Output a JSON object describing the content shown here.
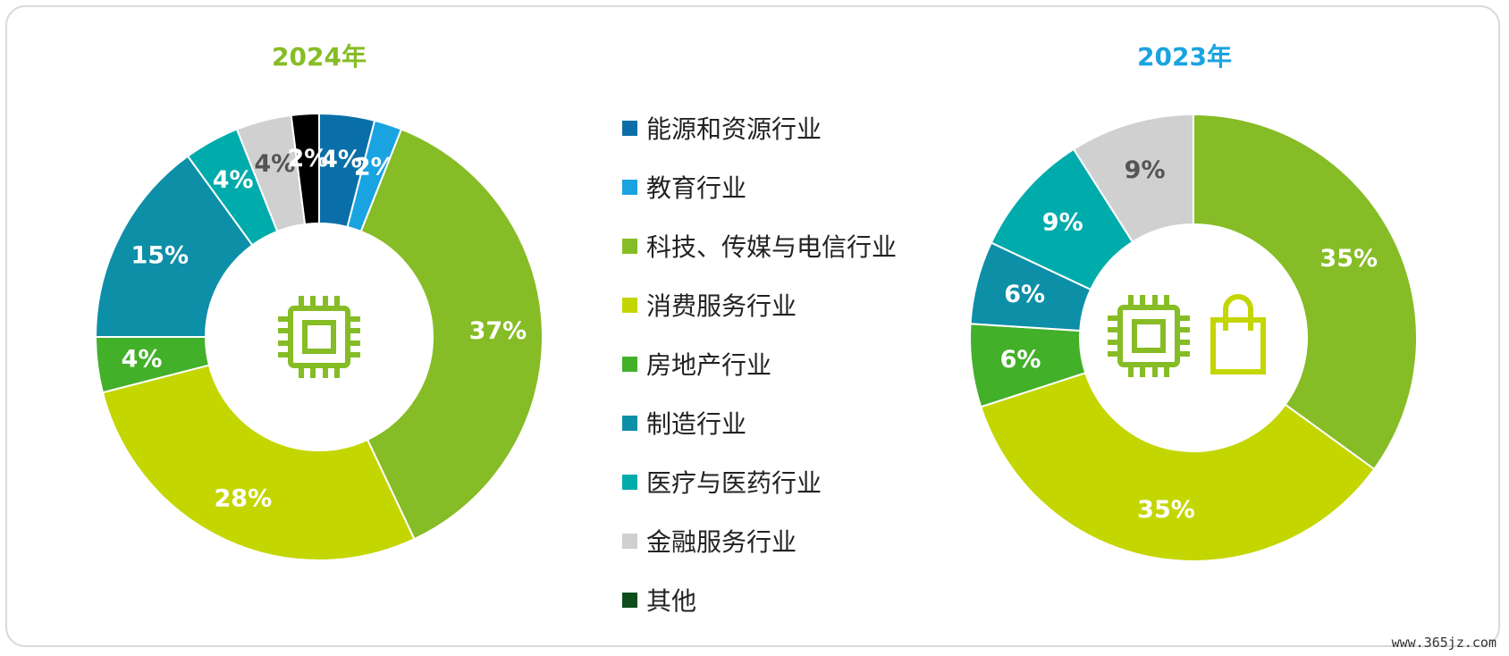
{
  "colors": {
    "energy": "#0a6fa8",
    "education": "#1aa3e1",
    "tmt": "#86bc25",
    "consumer": "#c4d600",
    "real_estate": "#43b02a",
    "manufacturing": "#0d8fa8",
    "health": "#00abab",
    "financial": "#d0d0d0",
    "other": "#000000",
    "title_2024": "#86bc25",
    "title_2023": "#1aa3e1"
  },
  "legend": [
    {
      "label": "能源和资源行业",
      "color": "#0a6fa8"
    },
    {
      "label": "教育行业",
      "color": "#1aa3e1"
    },
    {
      "label": "科技、传媒与电信行业",
      "color": "#86bc25"
    },
    {
      "label": "消费服务行业",
      "color": "#c4d600"
    },
    {
      "label": "房地产行业",
      "color": "#43b02a"
    },
    {
      "label": "制造行业",
      "color": "#0d8fa8"
    },
    {
      "label": "医疗与医药行业",
      "color": "#00abab"
    },
    {
      "label": "金融服务行业",
      "color": "#d0d0d0"
    },
    {
      "label": "其他",
      "color": "#0f4d1a"
    }
  ],
  "chart_data": [
    {
      "type": "pie",
      "title": "2024年",
      "icons": [
        "chip-icon"
      ],
      "slices": [
        {
          "category": "能源和资源行业",
          "value": 4,
          "label": "4%",
          "color": "#0a6fa8",
          "label_color": "#ffffff"
        },
        {
          "category": "教育行业",
          "value": 2,
          "label": "2%",
          "color": "#1aa3e1",
          "label_color": "#ffffff"
        },
        {
          "category": "科技、传媒与电信行业",
          "value": 37,
          "label": "37%",
          "color": "#86bc25",
          "label_color": "#ffffff"
        },
        {
          "category": "消费服务行业",
          "value": 28,
          "label": "28%",
          "color": "#c4d600",
          "label_color": "#ffffff"
        },
        {
          "category": "房地产行业",
          "value": 4,
          "label": "4%",
          "color": "#43b02a",
          "label_color": "#ffffff"
        },
        {
          "category": "制造行业",
          "value": 15,
          "label": "15%",
          "color": "#0d8fa8",
          "label_color": "#ffffff"
        },
        {
          "category": "医疗与医药行业",
          "value": 4,
          "label": "4%",
          "color": "#00abab",
          "label_color": "#ffffff"
        },
        {
          "category": "金融服务行业",
          "value": 4,
          "label": "4%",
          "color": "#d0d0d0",
          "label_color": "#555555"
        },
        {
          "category": "其他",
          "value": 2,
          "label": "2%",
          "color": "#000000",
          "label_color": "#ffffff"
        }
      ]
    },
    {
      "type": "pie",
      "title": "2023年",
      "icons": [
        "chip-icon",
        "shopping-bag-icon"
      ],
      "slices": [
        {
          "category": "科技、传媒与电信行业",
          "value": 35,
          "label": "35%",
          "color": "#86bc25",
          "label_color": "#ffffff"
        },
        {
          "category": "消费服务行业",
          "value": 35,
          "label": "35%",
          "color": "#c4d600",
          "label_color": "#ffffff"
        },
        {
          "category": "房地产行业",
          "value": 6,
          "label": "6%",
          "color": "#43b02a",
          "label_color": "#ffffff"
        },
        {
          "category": "制造行业",
          "value": 6,
          "label": "6%",
          "color": "#0d8fa8",
          "label_color": "#ffffff"
        },
        {
          "category": "医疗与医药行业",
          "value": 9,
          "label": "9%",
          "color": "#00abab",
          "label_color": "#ffffff"
        },
        {
          "category": "金融服务行业",
          "value": 9,
          "label": "9%",
          "color": "#d0d0d0",
          "label_color": "#555555"
        }
      ]
    }
  ],
  "watermark": "www.365jz.com"
}
